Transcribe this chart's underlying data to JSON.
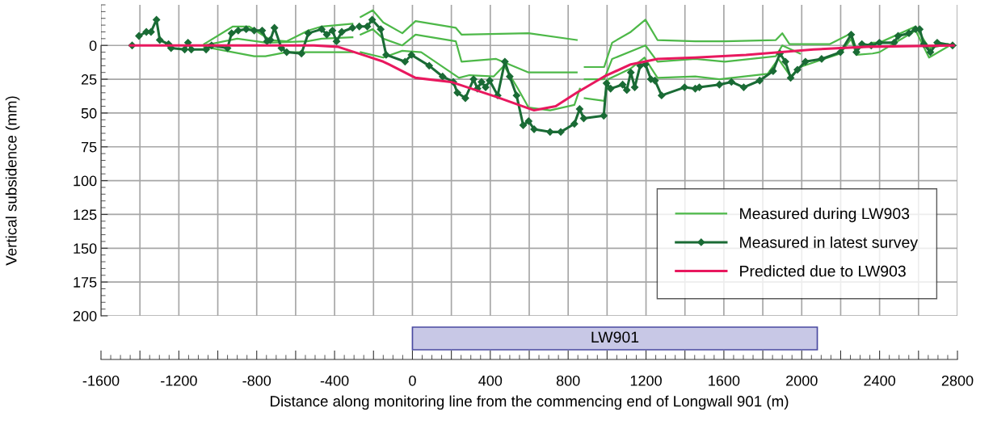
{
  "chart_data": [
    {
      "type": "line",
      "ylabel": "Vertical subsidence (mm)",
      "xlim": [
        -1600,
        2800
      ],
      "xticks": [
        -1600,
        -1400,
        -1200,
        -1000,
        -800,
        -600,
        -400,
        -200,
        0,
        200,
        400,
        600,
        800,
        1000,
        1200,
        1400,
        1600,
        1800,
        2000,
        2200,
        2400,
        2600,
        2800
      ],
      "ylim": [
        200,
        -30
      ],
      "yticks": [
        0,
        25,
        50,
        75,
        100,
        125,
        150,
        175,
        200
      ],
      "tick_labels": "y",
      "grid": true,
      "legend": "bottom right",
      "series": [
        {
          "name": "Measured during LW903",
          "color": "#4db848",
          "x": [
            -1070,
            -922,
            -839,
            -730,
            -647,
            -535,
            -466,
            -308,
            -290,
            -266,
            -204,
            -150,
            -52,
            16,
            223,
            252,
            597,
            844,
            870,
            885,
            985,
            1026,
            1122,
            1197,
            1259,
            1453,
            1605,
            1867,
            1900,
            1937,
            1991,
            2145,
            2254,
            2281,
            2364,
            2399,
            2585,
            2654,
            2750
          ],
          "values": [
            -1,
            -14,
            -14,
            -4,
            -3,
            -11,
            -14,
            -16,
            null,
            -21,
            -26,
            -17,
            -9,
            -18,
            -13,
            -8,
            -9,
            -4,
            null,
            16,
            16,
            -2,
            -10,
            -19,
            -4,
            -3,
            -3,
            -4,
            -9,
            -1,
            -1,
            -1,
            -9,
            3,
            -2,
            -2,
            -14,
            2,
            -1
          ]
        },
        {
          "color": "#4db848",
          "x": [
            -1070,
            -900,
            -750,
            -540,
            -466,
            -308,
            -290,
            -266,
            -204,
            -150,
            -52,
            16,
            223,
            252,
            430,
            597,
            844,
            870,
            885,
            985,
            1026,
            1197,
            1259,
            1453,
            1605,
            1867,
            1900,
            1991
          ],
          "values": [
            0,
            -5,
            -2,
            -3,
            -5,
            -6,
            null,
            -8,
            -12,
            -5,
            0,
            -8,
            -3,
            12,
            10,
            20,
            20,
            null,
            25,
            25,
            10,
            0,
            12,
            10,
            12,
            8,
            0,
            6
          ]
        },
        {
          "color": "#4db848",
          "x": [
            -1070,
            -813,
            -755,
            -647,
            -384,
            -308,
            -290,
            -266,
            -150,
            -52,
            45,
            239,
            293,
            417,
            471,
            542,
            597,
            707,
            832,
            860,
            870,
            885,
            985,
            1006,
            1122,
            1192,
            1259,
            1453,
            1577,
            1825,
            1880,
            1943,
            1991,
            2199,
            2254,
            2281,
            2364,
            2399,
            2585,
            2654,
            2750
          ],
          "values": [
            1,
            8,
            8,
            5,
            5,
            5,
            null,
            5,
            9,
            4,
            5,
            24,
            22,
            23,
            15,
            32,
            46,
            48,
            44,
            32,
            null,
            39,
            41,
            25,
            17,
            9,
            24,
            23,
            25,
            21,
            10,
            23,
            16,
            6,
            -5,
            7,
            6,
            5,
            -11,
            9,
            1
          ]
        },
        {
          "name": "Measured in latest survey",
          "color": "#1a6b35",
          "marker": "diamond",
          "x": [
            -1440,
            -1420,
            -1405,
            -1367,
            -1343,
            -1315,
            -1298,
            -1253,
            -1240,
            -1170,
            -1153,
            -1136,
            -1060,
            -1032,
            -950,
            -929,
            -895,
            -854,
            -813,
            -772,
            -747,
            -730,
            -709,
            -673,
            -646,
            -570,
            -535,
            -466,
            -440,
            -411,
            -390,
            -363,
            -308,
            -290,
            -273,
            -232,
            -207,
            -163,
            -135,
            -38,
            -5,
            86,
            155,
            210,
            231,
            272,
            314,
            334,
            355,
            376,
            397,
            438,
            475,
            500,
            535,
            569,
            597,
            625,
            707,
            762,
            832,
            859,
            880,
            983,
            997,
            1018,
            1080,
            1101,
            1122,
            1142,
            1170,
            1197,
            1225,
            1246,
            1280,
            1398,
            1453,
            1474,
            1577,
            1639,
            1702,
            1784,
            1853,
            1888,
            1916,
            1943,
            1978,
            2019,
            2102,
            2199,
            2254,
            2281,
            2309,
            2357,
            2399,
            2475,
            2495,
            2551,
            2585,
            2606,
            2627,
            2661,
            2696,
            2775
          ],
          "values": [
            0,
            null,
            -7,
            -10,
            -10,
            -19,
            -4,
            -1,
            2,
            3,
            -2,
            3,
            3,
            0,
            2,
            -9,
            -11,
            -12,
            -11,
            -11,
            -3,
            -4,
            -13,
            2,
            5,
            6,
            -9,
            -12,
            -8,
            -11,
            -3,
            -10,
            -13,
            null,
            -14,
            -14,
            -19,
            -12,
            7,
            12,
            7,
            15,
            23,
            27,
            35,
            39,
            25,
            32,
            27,
            31,
            26,
            37,
            12,
            23,
            37,
            59,
            56,
            62,
            64,
            64,
            58,
            47,
            54,
            52,
            28,
            32,
            29,
            33,
            20,
            31,
            15,
            14,
            25,
            26,
            37,
            31,
            32,
            31,
            29,
            27,
            31,
            26,
            19,
            6,
            12,
            24,
            18,
            12,
            10,
            5,
            -8,
            5,
            -1,
            0,
            -2,
            -2,
            -7,
            -9,
            -12,
            -12,
            -1,
            5,
            -2,
            0
          ]
        },
        {
          "name": "Predicted due to LW903",
          "color": "#e8185e",
          "x": [
            -1450,
            -506,
            -384,
            -233,
            -150,
            -121,
            16,
            198,
            430,
            625,
            736,
            844,
            985,
            1122,
            1259,
            1453,
            1714,
            2060,
            2335,
            2780
          ],
          "values": [
            0,
            0,
            1,
            8,
            12,
            14,
            24,
            27,
            38,
            48,
            45,
            35,
            23,
            14,
            10,
            9,
            7,
            3,
            1,
            0
          ]
        }
      ]
    },
    {
      "type": "bar",
      "orientation": "horizontal",
      "xlabel": "Distance along monitoring line from the commencing end of Longwall 901 (m)",
      "xlim": [
        -1600,
        2800
      ],
      "xticks": [
        -1600,
        {
          "value": -1400,
          "label": null
        },
        -1200,
        {
          "value": -1000,
          "label": null
        },
        -800,
        {
          "value": -600,
          "label": null
        },
        -400,
        {
          "value": -200,
          "label": null
        },
        0,
        {
          "value": 200,
          "label": null
        },
        400,
        {
          "value": 600,
          "label": null
        },
        800,
        {
          "value": 1000,
          "label": null
        },
        1200,
        {
          "value": 1400,
          "label": null
        },
        1600,
        {
          "value": 1800,
          "label": null
        },
        2000,
        {
          "value": 2200,
          "label": null
        },
        2400,
        {
          "value": 2600,
          "label": null
        },
        2800
      ],
      "tick_labels": "x",
      "categories": [
        null
      ],
      "base": [
        0
      ],
      "values": [
        2080
      ],
      "value_labels": [
        "LW901"
      ],
      "color": "#c8c8e6"
    }
  ]
}
